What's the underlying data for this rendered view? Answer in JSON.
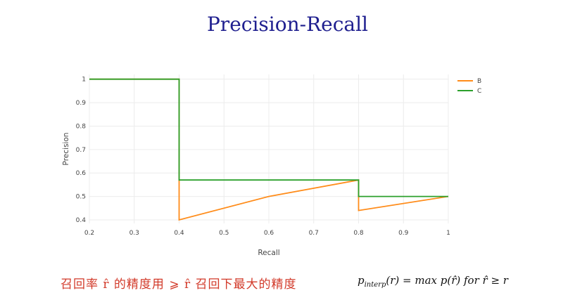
{
  "slide": {
    "title": "Precision-Recall",
    "caption_zh": "召回率 r̂ 的精度用 ⩾ r̂ 召回下最大的精度",
    "formula": {
      "p": "p",
      "sub": "interp",
      "rest": "(r) = max p(r̂) for r̂ ≥ r"
    }
  },
  "chart_data": {
    "type": "line",
    "title": "",
    "xlabel": "Recall",
    "ylabel": "Precision",
    "xlim": [
      0.2,
      1.0
    ],
    "ylim": [
      0.385,
      1.02
    ],
    "x_ticks": [
      0.2,
      0.3,
      0.4,
      0.5,
      0.6,
      0.7,
      0.8,
      0.9,
      1.0
    ],
    "x_tick_labels": [
      "0.2",
      "0.3",
      "0.4",
      "0.5",
      "0.6",
      "0.7",
      "0.8",
      "0.9",
      "1"
    ],
    "y_ticks": [
      0.4,
      0.5,
      0.6,
      0.7,
      0.8,
      0.9,
      1.0
    ],
    "y_tick_labels": [
      "0.4",
      "0.5",
      "0.6",
      "0.7",
      "0.8",
      "0.9",
      "1"
    ],
    "grid": true,
    "legend_position": "top-right",
    "series": [
      {
        "name": "B",
        "color": "#ff8c1a",
        "x": [
          0.2,
          0.4,
          0.4,
          0.6,
          0.8,
          0.8,
          1.0
        ],
        "y": [
          1.0,
          1.0,
          0.4,
          0.5,
          0.57,
          0.44,
          0.5
        ]
      },
      {
        "name": "C",
        "color": "#2ca02c",
        "x": [
          0.2,
          0.4,
          0.4,
          0.8,
          0.8,
          1.0
        ],
        "y": [
          1.0,
          1.0,
          0.57,
          0.57,
          0.5,
          0.5
        ]
      }
    ]
  }
}
